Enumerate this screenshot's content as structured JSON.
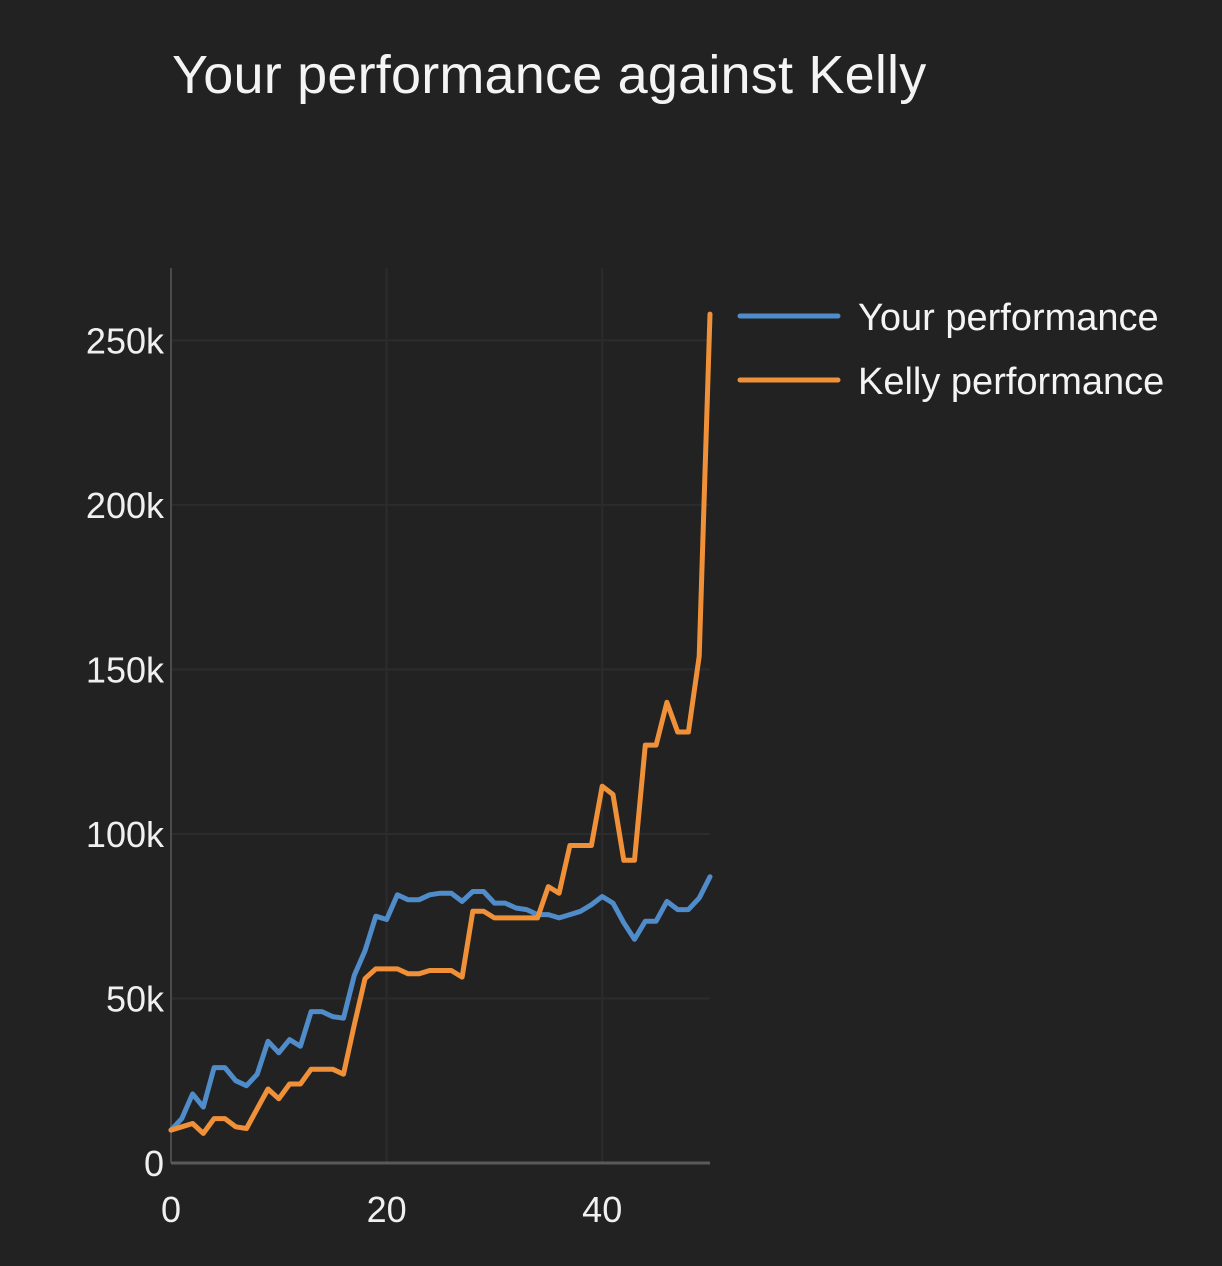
{
  "chart_data": {
    "type": "line",
    "title": "Your performance against Kelly",
    "xlabel": "",
    "ylabel": "",
    "xlim": [
      0,
      50
    ],
    "ylim": [
      0,
      272000
    ],
    "x_ticks": [
      0,
      20,
      40
    ],
    "x_tick_labels": [
      "0",
      "20",
      "40"
    ],
    "y_ticks": [
      0,
      50000,
      100000,
      150000,
      200000,
      250000
    ],
    "y_tick_labels": [
      "0",
      "50k",
      "100k",
      "150k",
      "200k",
      "250k"
    ],
    "grid": true,
    "legend_position": "right",
    "series": [
      {
        "name": "Your performance",
        "color": "#4f8cc9",
        "x": [
          0,
          1,
          2,
          3,
          4,
          5,
          6,
          7,
          8,
          9,
          10,
          11,
          12,
          13,
          14,
          15,
          16,
          17,
          18,
          19,
          20,
          21,
          22,
          23,
          24,
          25,
          26,
          27,
          28,
          29,
          30,
          31,
          32,
          33,
          34,
          35,
          36,
          37,
          38,
          39,
          40,
          41,
          42,
          43,
          44,
          45,
          46,
          47,
          48,
          49,
          50
        ],
        "y": [
          10000,
          13500,
          21000,
          17000,
          29000,
          29000,
          25000,
          23500,
          27000,
          37000,
          33500,
          37500,
          35500,
          46000,
          46000,
          44500,
          44000,
          57000,
          64500,
          75000,
          74000,
          81500,
          80000,
          80000,
          81500,
          82000,
          82000,
          79500,
          82500,
          82500,
          79000,
          79000,
          77500,
          77000,
          75500,
          75500,
          74500,
          75500,
          76500,
          78500,
          81000,
          79000,
          73000,
          68000,
          73500,
          73500,
          79500,
          77000,
          77000,
          80500,
          87000
        ]
      },
      {
        "name": "Kelly performance",
        "color": "#f0913a",
        "x": [
          0,
          1,
          2,
          3,
          4,
          5,
          6,
          7,
          8,
          9,
          10,
          11,
          12,
          13,
          14,
          15,
          16,
          17,
          18,
          19,
          20,
          21,
          22,
          23,
          24,
          25,
          26,
          27,
          28,
          29,
          30,
          31,
          32,
          33,
          34,
          35,
          36,
          37,
          38,
          39,
          40,
          41,
          42,
          43,
          44,
          45,
          46,
          47,
          48,
          49,
          50
        ],
        "y": [
          10000,
          11000,
          12000,
          9000,
          13500,
          13500,
          11000,
          10500,
          16500,
          22500,
          19500,
          24000,
          24000,
          28500,
          28500,
          28500,
          27000,
          42000,
          56000,
          59000,
          59000,
          59000,
          57500,
          57500,
          58500,
          58500,
          58500,
          56500,
          76500,
          76500,
          74500,
          74500,
          74500,
          74500,
          74500,
          84000,
          82000,
          96500,
          96500,
          96500,
          114500,
          112000,
          92000,
          92000,
          127000,
          127000,
          140000,
          131000,
          131000,
          154000,
          258000
        ]
      }
    ]
  }
}
